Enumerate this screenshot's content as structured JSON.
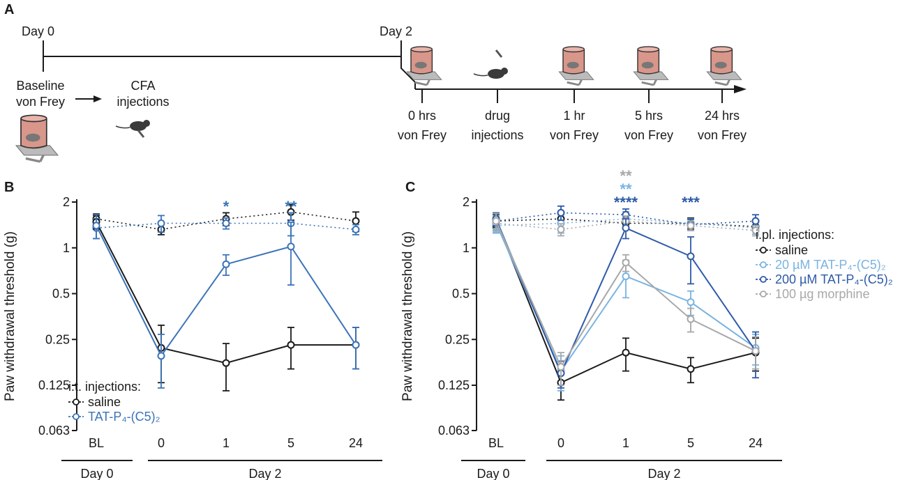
{
  "panel_a": {
    "label": "A",
    "day0_label": "Day 0",
    "day2_label": "Day 2",
    "baseline_line1": "Baseline",
    "baseline_line2": "von Frey",
    "cfa_line1": "CFA",
    "cfa_line2": "injections",
    "steps": [
      {
        "line1": "0 hrs",
        "line2": "von Frey",
        "icon": "von-frey-chamber-icon"
      },
      {
        "line1": "drug",
        "line2": "injections",
        "icon": "mouse-injection-icon"
      },
      {
        "line1": "1 hr",
        "line2": "von Frey",
        "icon": "von-frey-chamber-icon"
      },
      {
        "line1": "5 hrs",
        "line2": "von Frey",
        "icon": "von-frey-chamber-icon"
      },
      {
        "line1": "24 hrs",
        "line2": "von Frey",
        "icon": "von-frey-chamber-icon"
      }
    ]
  },
  "colors": {
    "saline": "#1a1a1a",
    "tat_blue": "#3b74b8",
    "tat_20": "#7ab3e0",
    "tat_200": "#2d5aa8",
    "morphine": "#a8a8a8"
  },
  "chart_data": [
    {
      "panel": "B",
      "type": "line",
      "ylabel": "Paw withdrawal threshold (g)",
      "yscale": "log2",
      "ylim": [
        0.063,
        2
      ],
      "yticks": [
        "2",
        "1",
        "0.5",
        "0.25",
        "0.125",
        "0.063"
      ],
      "categories": [
        "BL",
        "0",
        "1",
        "5",
        "24"
      ],
      "groups": [
        {
          "label": "Day 0",
          "from": 0,
          "to": 0
        },
        {
          "label": "Day 2",
          "from": 1,
          "to": 4
        }
      ],
      "legend_title": "i.t. injections:",
      "series": [
        {
          "name": "saline",
          "color": "#1a1a1a",
          "style": "solid",
          "values": [
            1.48,
            0.22,
            0.175,
            0.23,
            0.23
          ],
          "err": [
            0.15,
            0.09,
            0.06,
            0.07,
            0.07
          ]
        },
        {
          "name": "TAT-P₄-(C5)₂",
          "color": "#3b74b8",
          "style": "solid",
          "values": [
            1.4,
            0.195,
            0.78,
            1.02,
            0.23
          ],
          "err": [
            0.25,
            0.075,
            0.12,
            0.45,
            0.07
          ]
        },
        {
          "name": "saline (contralateral)",
          "legend": false,
          "color": "#1a1a1a",
          "style": "dotted",
          "values": [
            1.55,
            1.32,
            1.55,
            1.72,
            1.5
          ],
          "err": [
            0.12,
            0.1,
            0.15,
            0.2,
            0.22
          ]
        },
        {
          "name": "TAT-P₄-(C5)₂ (contralateral)",
          "legend": false,
          "color": "#3b74b8",
          "style": "dotted",
          "values": [
            1.35,
            1.45,
            1.45,
            1.45,
            1.32
          ],
          "err": [
            0.2,
            0.18,
            0.12,
            0.25,
            0.1
          ]
        }
      ],
      "annotations": [
        {
          "text": "*",
          "category": "1",
          "color": "#3b74b8",
          "row": 0
        },
        {
          "text": "**",
          "category": "5",
          "color": "#3b74b8",
          "row": 0
        }
      ]
    },
    {
      "panel": "C",
      "type": "line",
      "ylabel": "Paw withdrawal threshold (g)",
      "yscale": "log2",
      "ylim": [
        0.063,
        2
      ],
      "yticks": [
        "2",
        "1",
        "0.5",
        "0.25",
        "0.125",
        "0.063"
      ],
      "categories": [
        "BL",
        "0",
        "1",
        "5",
        "24"
      ],
      "groups": [
        {
          "label": "Day 0",
          "from": 0,
          "to": 0
        },
        {
          "label": "Day 2",
          "from": 1,
          "to": 4
        }
      ],
      "legend_title": "i.pl. injections:",
      "series": [
        {
          "name": "saline",
          "color": "#1a1a1a",
          "style": "solid",
          "values": [
            1.52,
            0.13,
            0.205,
            0.16,
            0.205
          ],
          "err": [
            0.15,
            0.03,
            0.05,
            0.03,
            0.05
          ]
        },
        {
          "name": "20 µM TAT-P₄-(C5)₂",
          "color": "#7ab3e0",
          "style": "solid",
          "values": [
            1.45,
            0.155,
            0.65,
            0.44,
            0.22
          ],
          "err": [
            0.18,
            0.04,
            0.18,
            0.08,
            0.05
          ]
        },
        {
          "name": "200 µM TAT-P₄-(C5)₂",
          "color": "#2d5aa8",
          "style": "solid",
          "values": [
            1.55,
            0.15,
            1.35,
            0.88,
            0.21
          ],
          "err": [
            0.15,
            0.03,
            0.2,
            0.3,
            0.07
          ]
        },
        {
          "name": "100 µg morphine",
          "color": "#a8a8a8",
          "style": "solid",
          "values": [
            1.5,
            0.165,
            0.8,
            0.34,
            0.21
          ],
          "err": [
            0.18,
            0.04,
            0.1,
            0.06,
            0.05
          ]
        },
        {
          "name": "saline (contralateral)",
          "legend": false,
          "color": "#1a1a1a",
          "style": "dotted",
          "values": [
            1.5,
            1.55,
            1.45,
            1.45,
            1.38
          ],
          "err": [
            0.15,
            0.1,
            0.12,
            0.12,
            0.1
          ]
        },
        {
          "name": "20 µM (contralateral)",
          "legend": false,
          "color": "#7ab3e0",
          "style": "dotted",
          "values": [
            1.4,
            1.45,
            1.55,
            1.45,
            1.35
          ],
          "err": [
            0.15,
            0.2,
            0.18,
            0.1,
            0.12
          ]
        },
        {
          "name": "200 µM (contralateral)",
          "legend": false,
          "color": "#2d5aa8",
          "style": "dotted",
          "values": [
            1.5,
            1.7,
            1.65,
            1.42,
            1.5
          ],
          "err": [
            0.2,
            0.18,
            0.15,
            0.12,
            0.15
          ]
        },
        {
          "name": "morphine (contralateral)",
          "legend": false,
          "color": "#a8a8a8",
          "style": "dotted",
          "values": [
            1.45,
            1.32,
            1.5,
            1.4,
            1.3
          ],
          "err": [
            0.15,
            0.12,
            0.12,
            0.1,
            0.1
          ]
        }
      ],
      "annotations": [
        {
          "text": "**",
          "category": "1",
          "color": "#a8a8a8",
          "row": 2
        },
        {
          "text": "**",
          "category": "1",
          "color": "#7ab3e0",
          "row": 1
        },
        {
          "text": "****",
          "category": "1",
          "color": "#2d5aa8",
          "row": 0
        },
        {
          "text": "***",
          "category": "5",
          "color": "#2d5aa8",
          "row": 0
        }
      ]
    }
  ]
}
